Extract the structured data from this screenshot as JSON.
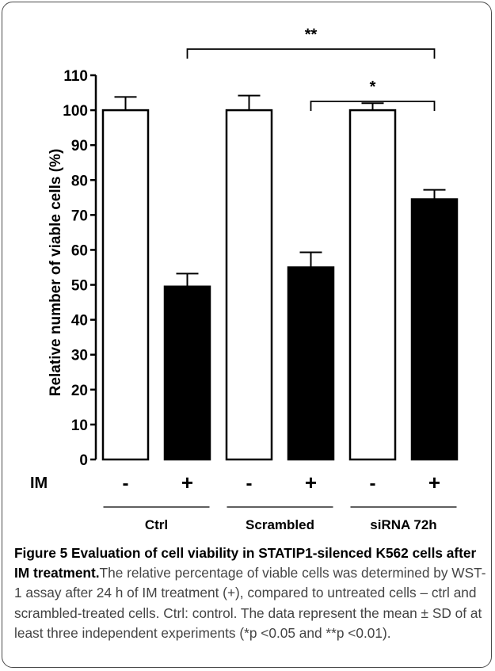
{
  "chart_data": {
    "type": "bar",
    "ylabel": "Relative number of viable cells (%)",
    "ylim": [
      0,
      110
    ],
    "yticks": [
      "0",
      "10",
      "20",
      "30",
      "40",
      "50",
      "60",
      "70",
      "80",
      "90",
      "100",
      "110"
    ],
    "treatment_row_label": "IM",
    "bars": [
      {
        "group": "Ctrl",
        "treatment": "-",
        "value": 100,
        "sd": 3.8,
        "fill": "white"
      },
      {
        "group": "Ctrl",
        "treatment": "+",
        "value": 49.5,
        "sd": 3.7,
        "fill": "black"
      },
      {
        "group": "Scrambled",
        "treatment": "-",
        "value": 100,
        "sd": 4.2,
        "fill": "white"
      },
      {
        "group": "Scrambled",
        "treatment": "+",
        "value": 55,
        "sd": 4.3,
        "fill": "black"
      },
      {
        "group": "siRNA 72h",
        "treatment": "-",
        "value": 100,
        "sd": 2.0,
        "fill": "white"
      },
      {
        "group": "siRNA 72h",
        "treatment": "+",
        "value": 74.5,
        "sd": 2.7,
        "fill": "black"
      }
    ],
    "groups": [
      "Ctrl",
      "Scrambled",
      "siRNA 72h"
    ],
    "significance": [
      {
        "label": "**",
        "from_bar": 1,
        "to_bar": 5
      },
      {
        "label": "*",
        "from_bar": 3,
        "to_bar": 5
      }
    ]
  },
  "caption": {
    "title": "Figure 5 Evaluation of cell viability in STATIP1-silenced K562 cells after IM treatment.",
    "body": "The relative percentage of viable cells was determined by WST-1 assay after 24 h of IM treatment (+), compared to untreated cells – ctrl and scrambled-treated cells. Ctrl: control. The data represent the mean ± SD of at least three independent experiments (*p <0.05 and **p <0.01)."
  }
}
